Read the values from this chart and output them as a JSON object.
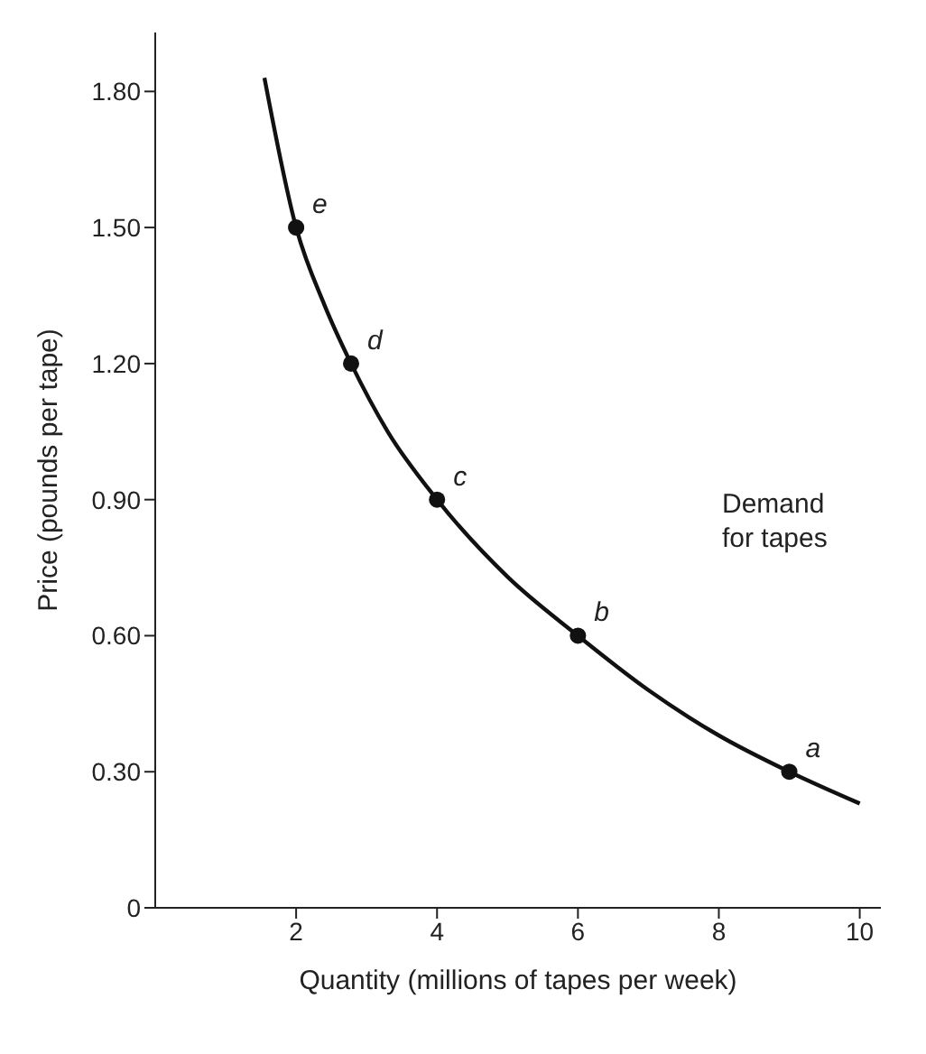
{
  "chart_data": {
    "type": "line",
    "xlabel": "Quantity (millions of tapes per week)",
    "ylabel": "Price (pounds per tape)",
    "xlim": [
      0,
      10.3
    ],
    "xticks": [
      2,
      4,
      6,
      8,
      10
    ],
    "ylim": [
      0,
      1.93
    ],
    "yticks": [
      0,
      {
        "value": 0.3,
        "label": "0.30"
      },
      {
        "value": 0.6,
        "label": "0.60"
      },
      {
        "value": 0.9,
        "label": "0.90"
      },
      {
        "value": 1.2,
        "label": "1.20"
      },
      {
        "value": 1.5,
        "label": "1.50"
      },
      {
        "value": 1.8,
        "label": "1.80"
      }
    ],
    "grid": false,
    "legend": false,
    "series": [
      {
        "color": "#111111",
        "marker": "none",
        "x": [
          1.55,
          2,
          2.4,
          2.78,
          3.3,
          4,
          5,
          6,
          7,
          8,
          9,
          10
        ],
        "values": [
          1.83,
          1.5,
          1.33,
          1.2,
          1.05,
          0.9,
          0.73,
          0.6,
          0.48,
          0.38,
          0.3,
          0.23
        ]
      },
      {
        "type": "scatter",
        "color": "#111111",
        "marker": "circle",
        "x": [
          9,
          6,
          4,
          2.78,
          2
        ],
        "values": [
          0.3,
          0.6,
          0.9,
          1.2,
          1.5
        ]
      }
    ],
    "annotations": [
      {
        "text": "a",
        "x": 9,
        "y": 0.3
      },
      {
        "text": "b",
        "x": 6,
        "y": 0.6
      },
      {
        "text": "c",
        "x": 4,
        "y": 0.9
      },
      {
        "text": "d",
        "x": 2.78,
        "y": 1.2
      },
      {
        "text": "e",
        "x": 2,
        "y": 1.5
      },
      "Demand for tapes"
    ]
  }
}
